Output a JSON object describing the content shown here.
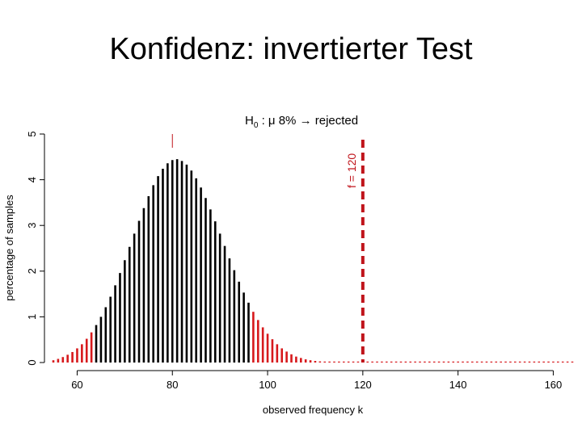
{
  "slide": {
    "title": "Konfidenz: invertierter Test"
  },
  "chart_data": {
    "type": "bar",
    "header": {
      "prefix": "H",
      "subscript": "0",
      "rest": " : μ   8% → rejected"
    },
    "xlabel": "observed frequency k",
    "ylabel": "percentage of samples",
    "xlim": [
      55,
      164
    ],
    "ylim": [
      0,
      5
    ],
    "xticks": [
      60,
      80,
      100,
      120,
      140,
      160
    ],
    "yticks": [
      0,
      1,
      2,
      3,
      4,
      5
    ],
    "reference_line": {
      "x": 120,
      "label": "f = 120",
      "color": "#c0141b"
    },
    "mean_line": {
      "x": 80,
      "color": "#c0141b"
    },
    "accept_region": [
      64,
      96
    ],
    "colors": {
      "accept": "#000000",
      "reject": "#d7191c"
    },
    "points": [
      [
        55,
        0.05
      ],
      [
        56,
        0.08
      ],
      [
        57,
        0.12
      ],
      [
        58,
        0.17
      ],
      [
        59,
        0.23
      ],
      [
        60,
        0.31
      ],
      [
        61,
        0.4
      ],
      [
        62,
        0.52
      ],
      [
        63,
        0.66
      ],
      [
        64,
        0.82
      ],
      [
        65,
        1.0
      ],
      [
        66,
        1.21
      ],
      [
        67,
        1.44
      ],
      [
        68,
        1.69
      ],
      [
        69,
        1.96
      ],
      [
        70,
        2.24
      ],
      [
        71,
        2.53
      ],
      [
        72,
        2.82
      ],
      [
        73,
        3.1
      ],
      [
        74,
        3.38
      ],
      [
        75,
        3.64
      ],
      [
        76,
        3.88
      ],
      [
        77,
        4.08
      ],
      [
        78,
        4.24
      ],
      [
        79,
        4.36
      ],
      [
        80,
        4.43
      ],
      [
        81,
        4.45
      ],
      [
        82,
        4.41
      ],
      [
        83,
        4.33
      ],
      [
        84,
        4.2
      ],
      [
        85,
        4.03
      ],
      [
        86,
        3.83
      ],
      [
        87,
        3.6
      ],
      [
        88,
        3.35
      ],
      [
        89,
        3.09
      ],
      [
        90,
        2.82
      ],
      [
        91,
        2.55
      ],
      [
        92,
        2.28
      ],
      [
        93,
        2.02
      ],
      [
        94,
        1.77
      ],
      [
        95,
        1.53
      ],
      [
        96,
        1.31
      ],
      [
        97,
        1.11
      ],
      [
        98,
        0.93
      ],
      [
        99,
        0.77
      ],
      [
        100,
        0.63
      ],
      [
        101,
        0.51
      ],
      [
        102,
        0.4
      ],
      [
        103,
        0.31
      ],
      [
        104,
        0.24
      ],
      [
        105,
        0.18
      ],
      [
        106,
        0.13
      ],
      [
        107,
        0.1
      ],
      [
        108,
        0.07
      ],
      [
        109,
        0.05
      ],
      [
        110,
        0.035
      ],
      [
        111,
        0.025
      ],
      [
        112,
        0.018
      ],
      [
        113,
        0.012
      ],
      [
        114,
        0.008
      ],
      [
        115,
        0.005
      ],
      [
        116,
        0.004
      ],
      [
        117,
        0.003
      ],
      [
        118,
        0.002
      ],
      [
        119,
        0.002
      ],
      [
        120,
        0.001
      ],
      [
        121,
        0.001
      ],
      [
        122,
        0.001
      ],
      [
        123,
        0.001
      ],
      [
        124,
        0.001
      ],
      [
        125,
        0.001
      ],
      [
        126,
        0.001
      ],
      [
        127,
        0.001
      ],
      [
        128,
        0.001
      ],
      [
        129,
        0.001
      ],
      [
        130,
        0.001
      ],
      [
        131,
        0.001
      ],
      [
        132,
        0.001
      ],
      [
        133,
        0.001
      ],
      [
        134,
        0.001
      ],
      [
        135,
        0.001
      ],
      [
        136,
        0.001
      ],
      [
        137,
        0.001
      ],
      [
        138,
        0.001
      ],
      [
        139,
        0.001
      ],
      [
        140,
        0.001
      ],
      [
        141,
        0.001
      ],
      [
        142,
        0.001
      ],
      [
        143,
        0.001
      ],
      [
        144,
        0.001
      ],
      [
        145,
        0.001
      ],
      [
        146,
        0.001
      ],
      [
        147,
        0.001
      ],
      [
        148,
        0.001
      ],
      [
        149,
        0.001
      ],
      [
        150,
        0.001
      ],
      [
        151,
        0.001
      ],
      [
        152,
        0.001
      ],
      [
        153,
        0.001
      ],
      [
        154,
        0.001
      ],
      [
        155,
        0.001
      ],
      [
        156,
        0.001
      ],
      [
        157,
        0.001
      ],
      [
        158,
        0.001
      ],
      [
        159,
        0.001
      ],
      [
        160,
        0.001
      ],
      [
        161,
        0.001
      ],
      [
        162,
        0.001
      ],
      [
        163,
        0.001
      ],
      [
        164,
        0.001
      ]
    ]
  }
}
